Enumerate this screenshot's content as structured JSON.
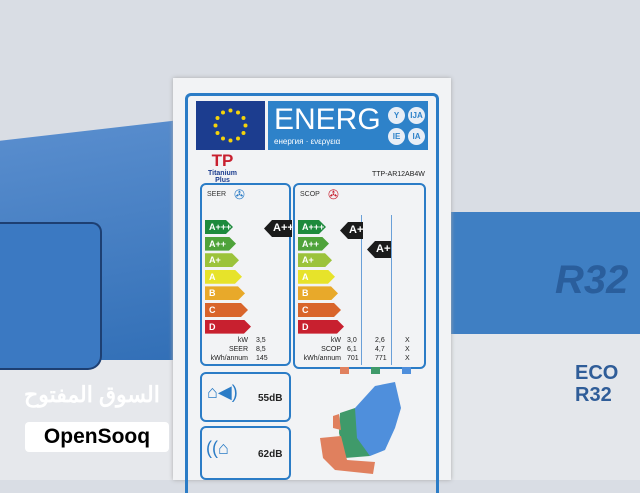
{
  "background": {
    "right_text": "R32",
    "eco_lines": [
      "ECO",
      "R32"
    ]
  },
  "label": {
    "header": {
      "title": "ENERG",
      "subtitle": "енергия · ενεργεια",
      "suffixes": [
        "Y",
        "IJA",
        "IE",
        "IA"
      ]
    },
    "brand": "Titanium Plus",
    "model": "TTP-AR12AB4W",
    "scale": [
      "A+++",
      "A++",
      "A+",
      "A",
      "B",
      "C",
      "D"
    ],
    "scale_colors": [
      "#1d8a3c",
      "#4fa33a",
      "#9cc33b",
      "#e7e32a",
      "#e8a92a",
      "#d9652b",
      "#c8202f"
    ],
    "seer": {
      "heading": "SEER",
      "class": "A+++",
      "rows": [
        [
          "kW",
          "3,5"
        ],
        [
          "SEER",
          "8,5"
        ],
        [
          "kWh/annum",
          "145"
        ]
      ]
    },
    "scop": {
      "heading": "SCOP",
      "classes": [
        "A+++",
        "A++"
      ],
      "rows": [
        [
          "kW",
          "3,0",
          "2,6",
          "X"
        ],
        [
          "SCOP",
          "6,1",
          "4,7",
          "X"
        ],
        [
          "kWh/annum",
          "701",
          "771",
          "X"
        ]
      ],
      "zone_colors": [
        "#e0805e",
        "#3f9a6a",
        "#4f8fdc"
      ]
    },
    "noise_indoor": "55dB",
    "noise_outdoor": "62dB"
  },
  "watermark": {
    "arabic": "السوق المفتوح",
    "latin": "OpenSooq"
  }
}
